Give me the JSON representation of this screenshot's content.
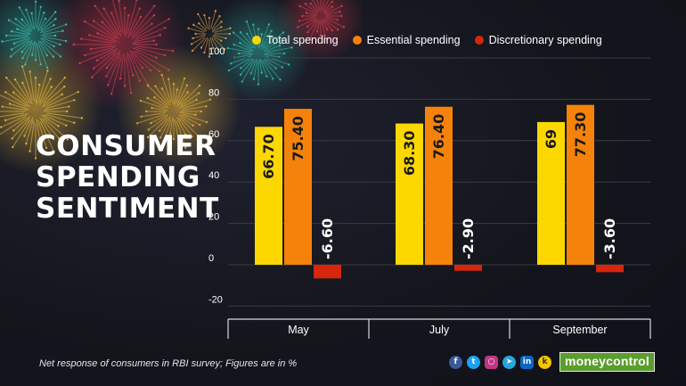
{
  "title_lines": [
    "CONSUMER",
    "SPENDING",
    "SENTIMENT"
  ],
  "footnote": "Net response of consumers in RBI survey; Figures are in %",
  "brand": "moneycontrol",
  "social_icons": [
    "facebook-icon",
    "twitter-icon",
    "instagram-icon",
    "telegram-icon",
    "linkedin-icon",
    "koo-icon"
  ],
  "colors": {
    "total": "#fdd800",
    "essential": "#f5820a",
    "discretionary": "#d6260c",
    "brand": "#5a9e2d"
  },
  "chart_data": {
    "type": "bar",
    "categories": [
      "May",
      "July",
      "September"
    ],
    "series": [
      {
        "name": "Total spending",
        "values": [
          66.7,
          68.3,
          69
        ],
        "labels": [
          "66.70",
          "68.30",
          "69"
        ],
        "color": "#fdd800"
      },
      {
        "name": "Essential spending",
        "values": [
          75.4,
          76.4,
          77.3
        ],
        "labels": [
          "75.40",
          "76.40",
          "77.30"
        ],
        "color": "#f5820a"
      },
      {
        "name": "Discretionary spending",
        "values": [
          -6.6,
          -2.9,
          -3.6
        ],
        "labels": [
          "-6.60",
          "-2.90",
          "-3.60"
        ],
        "color": "#d6260c"
      }
    ],
    "yticks": [
      "100",
      "80",
      "60",
      "40",
      "20",
      "0",
      "-20"
    ],
    "ylim": [
      -20,
      100
    ],
    "grid": true,
    "legend_position": "top"
  }
}
